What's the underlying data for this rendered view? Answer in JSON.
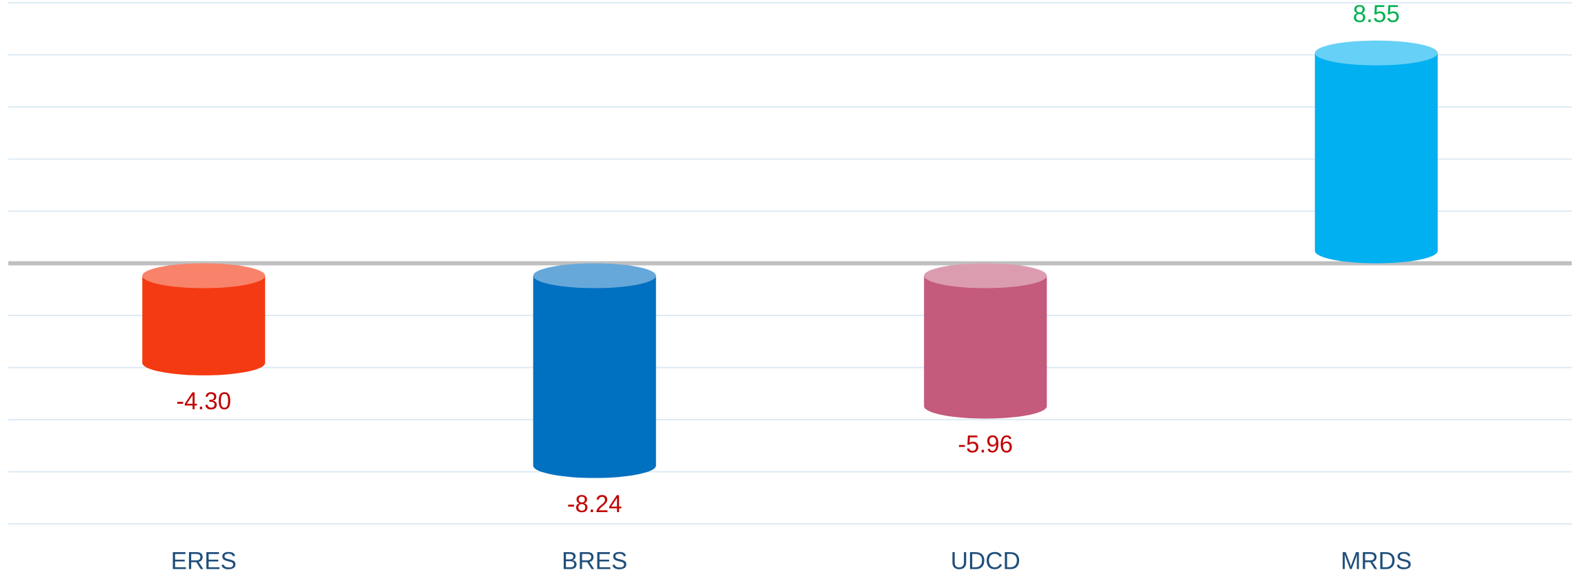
{
  "chart_data": {
    "type": "cylinder_bar",
    "categories": [
      "ERES",
      "BRES",
      "UDCD",
      "MRDS"
    ],
    "values": [
      -4.3,
      -8.24,
      -5.96,
      8.55
    ],
    "value_labels": [
      "-4.30",
      "-8.24",
      "-5.96",
      "8.55"
    ],
    "colors": [
      "#f43a12",
      "#0070c0",
      "#c45a7c",
      "#00b0f0"
    ],
    "cap_colors": [
      "#f9836a",
      "#66a8da",
      "#dc9cb0",
      "#66d0f6"
    ],
    "negative_label_color": "#c00000",
    "positive_label_color": "#00b050",
    "ylim": [
      -10,
      10
    ],
    "yticks": [
      -10,
      -8,
      -6,
      -4,
      -2,
      0,
      2,
      4,
      6,
      8,
      10
    ],
    "grid": true
  }
}
